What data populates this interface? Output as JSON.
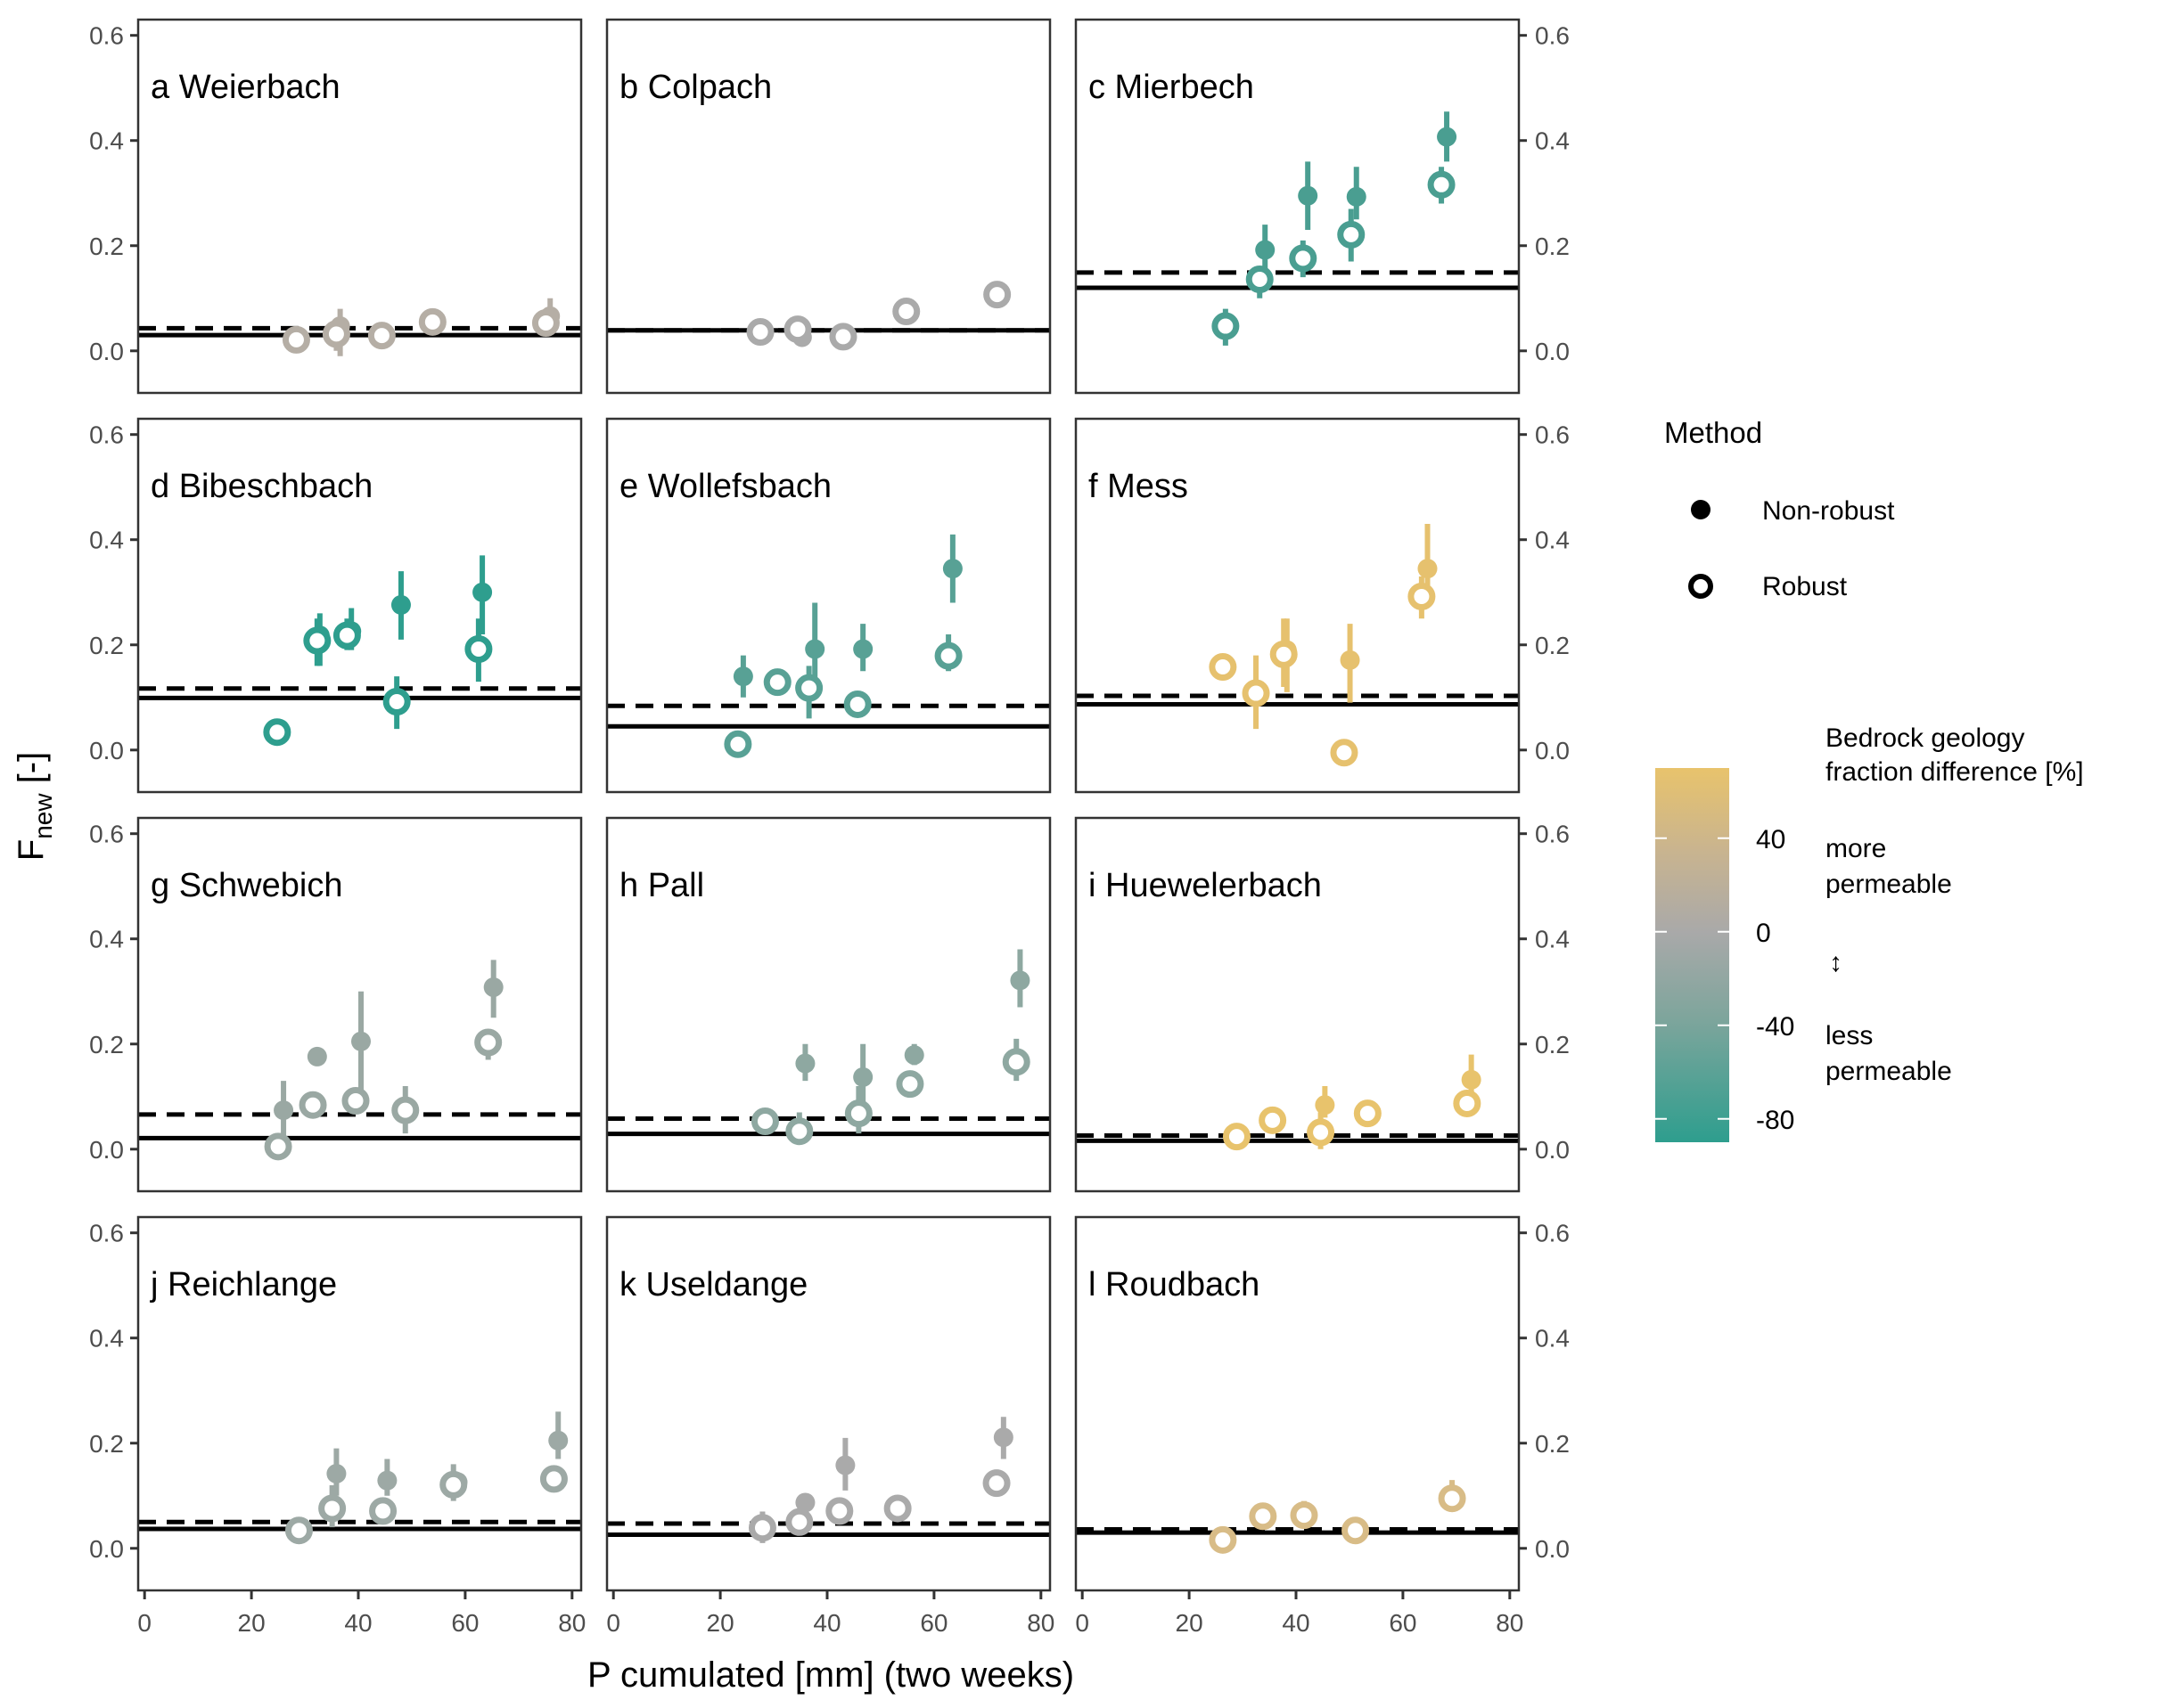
{
  "chart_data": {
    "type": "scatter",
    "title": "",
    "xlabel": "P cumulated [mm] (two weeks)",
    "ylabel": "F",
    "ylabel_subscript": "new",
    "ylabel_suffix": " [-]",
    "xlim": [
      -1.2,
      81.7
    ],
    "ylim": [
      -0.08,
      0.63
    ],
    "xticks": [
      0,
      20,
      40,
      60,
      80
    ],
    "xtick_labels": [
      "0",
      "20",
      "40",
      "60",
      "80"
    ],
    "yticks": [
      0.0,
      0.2,
      0.4,
      0.6
    ],
    "ytick_labels": [
      "0.0",
      "0.2",
      "0.4",
      "0.6"
    ],
    "grid": false,
    "legend": {
      "position": "right",
      "method_title": "Method",
      "items": [
        {
          "label": "Non-robust",
          "shape": "filled-circle"
        },
        {
          "label": "Robust",
          "shape": "open-circle"
        }
      ],
      "colorbar": {
        "title_lines": [
          "Bedrock geology",
          "fraction difference [%]"
        ],
        "range": [
          -90,
          70
        ],
        "ticks": [
          40,
          0,
          -40,
          -80
        ],
        "tick_labels": [
          "40",
          "0",
          "-40",
          "-80"
        ],
        "low_color": "#2E9E8E",
        "mid_color": "#A9A9A9",
        "high_color": "#E8C36C",
        "annotation_top": [
          "more",
          "permeable"
        ],
        "annotation_arrow": "↕",
        "annotation_bottom": [
          "less",
          "permeable"
        ]
      }
    },
    "reference_lines": {
      "solid": "solid reference line",
      "dashed": "dashed reference line"
    },
    "panels": [
      {
        "id": "a",
        "title": "a Weierbach",
        "color": "#B5AEA5",
        "solid": 0.03,
        "dashed": 0.043,
        "points": [
          {
            "method": "Robust",
            "x": 28.4,
            "y": 0.021
          },
          {
            "method": "Non-robust",
            "x": 36.6,
            "y": 0.047,
            "lo": -0.01,
            "hi": 0.08
          },
          {
            "method": "Robust",
            "x": 35.9,
            "y": 0.032,
            "lo": 0.0,
            "hi": 0.06
          },
          {
            "method": "Robust",
            "x": 44.4,
            "y": 0.029
          },
          {
            "method": "Robust",
            "x": 53.9,
            "y": 0.055
          },
          {
            "method": "Non-robust",
            "x": 75.9,
            "y": 0.066,
            "lo": 0.04,
            "hi": 0.1
          },
          {
            "method": "Robust",
            "x": 75.1,
            "y": 0.053
          }
        ]
      },
      {
        "id": "b",
        "title": "b Colpach",
        "color": "#AAAAAA",
        "solid": 0.039,
        "dashed": 0.039,
        "points": [
          {
            "method": "Robust",
            "x": 27.5,
            "y": 0.036
          },
          {
            "method": "Non-robust",
            "x": 35.3,
            "y": 0.026
          },
          {
            "method": "Robust",
            "x": 34.5,
            "y": 0.041
          },
          {
            "method": "Robust",
            "x": 43.0,
            "y": 0.027
          },
          {
            "method": "Robust",
            "x": 54.8,
            "y": 0.075
          },
          {
            "method": "Non-robust",
            "x": 72.4,
            "y": 0.107,
            "lo": 0.09,
            "hi": 0.125
          },
          {
            "method": "Robust",
            "x": 71.8,
            "y": 0.107
          }
        ]
      },
      {
        "id": "c",
        "title": "c Mierbech",
        "color": "#4A9E91",
        "solid": 0.12,
        "dashed": 0.149,
        "points": [
          {
            "method": "Robust",
            "x": 26.8,
            "y": 0.047,
            "lo": 0.01,
            "hi": 0.08
          },
          {
            "method": "Non-robust",
            "x": 34.2,
            "y": 0.192,
            "lo": 0.14,
            "hi": 0.24
          },
          {
            "method": "Robust",
            "x": 33.2,
            "y": 0.136,
            "lo": 0.1,
            "hi": 0.16
          },
          {
            "method": "Non-robust",
            "x": 42.2,
            "y": 0.295,
            "lo": 0.23,
            "hi": 0.36
          },
          {
            "method": "Robust",
            "x": 41.3,
            "y": 0.176,
            "lo": 0.14,
            "hi": 0.21
          },
          {
            "method": "Non-robust",
            "x": 51.3,
            "y": 0.293,
            "lo": 0.25,
            "hi": 0.35
          },
          {
            "method": "Robust",
            "x": 50.3,
            "y": 0.221,
            "lo": 0.17,
            "hi": 0.27
          },
          {
            "method": "Non-robust",
            "x": 68.2,
            "y": 0.407,
            "lo": 0.36,
            "hi": 0.455
          },
          {
            "method": "Robust",
            "x": 67.2,
            "y": 0.316,
            "lo": 0.28,
            "hi": 0.35
          }
        ]
      },
      {
        "id": "d",
        "title": "d Bibeschbach",
        "color": "#2E9E8E",
        "solid": 0.099,
        "dashed": 0.117,
        "points": [
          {
            "method": "Non-robust",
            "x": 25.3,
            "y": 0.04
          },
          {
            "method": "Robust",
            "x": 24.8,
            "y": 0.034
          },
          {
            "method": "Non-robust",
            "x": 32.8,
            "y": 0.218,
            "lo": 0.16,
            "hi": 0.26
          },
          {
            "method": "Robust",
            "x": 32.3,
            "y": 0.208,
            "lo": 0.16,
            "hi": 0.25
          },
          {
            "method": "Non-robust",
            "x": 38.7,
            "y": 0.226,
            "lo": 0.19,
            "hi": 0.27
          },
          {
            "method": "Robust",
            "x": 37.9,
            "y": 0.218,
            "lo": 0.19,
            "hi": 0.25
          },
          {
            "method": "Non-robust",
            "x": 48.0,
            "y": 0.276,
            "lo": 0.21,
            "hi": 0.34
          },
          {
            "method": "Robust",
            "x": 47.2,
            "y": 0.092,
            "lo": 0.04,
            "hi": 0.14
          },
          {
            "method": "Non-robust",
            "x": 63.2,
            "y": 0.3,
            "lo": 0.22,
            "hi": 0.37
          },
          {
            "method": "Robust",
            "x": 62.5,
            "y": 0.192,
            "lo": 0.13,
            "hi": 0.25
          }
        ]
      },
      {
        "id": "e",
        "title": "e Wollefsbach",
        "color": "#58A195",
        "solid": 0.045,
        "dashed": 0.084,
        "points": [
          {
            "method": "Robust",
            "x": 23.3,
            "y": 0.011
          },
          {
            "method": "Non-robust",
            "x": 24.3,
            "y": 0.14,
            "lo": 0.1,
            "hi": 0.18
          },
          {
            "method": "Robust",
            "x": 30.7,
            "y": 0.129
          },
          {
            "method": "Non-robust",
            "x": 37.7,
            "y": 0.192,
            "lo": 0.12,
            "hi": 0.28
          },
          {
            "method": "Robust",
            "x": 36.6,
            "y": 0.118,
            "lo": 0.06,
            "hi": 0.16
          },
          {
            "method": "Non-robust",
            "x": 46.7,
            "y": 0.192,
            "lo": 0.15,
            "hi": 0.24
          },
          {
            "method": "Robust",
            "x": 45.7,
            "y": 0.087
          },
          {
            "method": "Non-robust",
            "x": 63.5,
            "y": 0.345,
            "lo": 0.28,
            "hi": 0.41
          },
          {
            "method": "Robust",
            "x": 62.7,
            "y": 0.179,
            "lo": 0.15,
            "hi": 0.22
          }
        ]
      },
      {
        "id": "f",
        "title": "f Mess",
        "color": "#E6C16E",
        "solid": 0.087,
        "dashed": 0.103,
        "points": [
          {
            "method": "Robust",
            "x": 26.3,
            "y": 0.158,
            "lo": 0.14,
            "hi": 0.17
          },
          {
            "method": "Robust",
            "x": 32.5,
            "y": 0.108,
            "lo": 0.04,
            "hi": 0.18
          },
          {
            "method": "Non-robust",
            "x": 38.3,
            "y": 0.19,
            "lo": 0.11,
            "hi": 0.25
          },
          {
            "method": "Robust",
            "x": 37.7,
            "y": 0.182,
            "lo": 0.12,
            "hi": 0.25
          },
          {
            "method": "Non-robust",
            "x": 50.1,
            "y": 0.171,
            "lo": 0.09,
            "hi": 0.24
          },
          {
            "method": "Robust",
            "x": 49.0,
            "y": -0.005
          },
          {
            "method": "Non-robust",
            "x": 64.6,
            "y": 0.345,
            "lo": 0.3,
            "hi": 0.43
          },
          {
            "method": "Robust",
            "x": 63.5,
            "y": 0.292,
            "lo": 0.25,
            "hi": 0.33
          }
        ]
      },
      {
        "id": "g",
        "title": "g Schwebich",
        "color": "#9AA8A3",
        "solid": 0.021,
        "dashed": 0.066,
        "points": [
          {
            "method": "Non-robust",
            "x": 26.0,
            "y": 0.074,
            "lo": 0.02,
            "hi": 0.13
          },
          {
            "method": "Robust",
            "x": 25.0,
            "y": 0.005
          },
          {
            "method": "Non-robust",
            "x": 32.3,
            "y": 0.176
          },
          {
            "method": "Robust",
            "x": 31.5,
            "y": 0.084
          },
          {
            "method": "Non-robust",
            "x": 40.5,
            "y": 0.205,
            "lo": 0.08,
            "hi": 0.3
          },
          {
            "method": "Robust",
            "x": 39.5,
            "y": 0.092
          },
          {
            "method": "Robust",
            "x": 48.8,
            "y": 0.074,
            "lo": 0.03,
            "hi": 0.12
          },
          {
            "method": "Non-robust",
            "x": 65.3,
            "y": 0.308,
            "lo": 0.25,
            "hi": 0.36
          },
          {
            "method": "Robust",
            "x": 64.3,
            "y": 0.203,
            "lo": 0.17,
            "hi": 0.22
          }
        ]
      },
      {
        "id": "h",
        "title": "h Pall",
        "color": "#8EA8A1",
        "solid": 0.029,
        "dashed": 0.058,
        "points": [
          {
            "method": "Robust",
            "x": 28.4,
            "y": 0.053,
            "lo": 0.04,
            "hi": 0.06
          },
          {
            "method": "Non-robust",
            "x": 35.9,
            "y": 0.163,
            "lo": 0.13,
            "hi": 0.2
          },
          {
            "method": "Robust",
            "x": 34.8,
            "y": 0.034,
            "lo": 0.01,
            "hi": 0.07
          },
          {
            "method": "Non-robust",
            "x": 46.7,
            "y": 0.137,
            "lo": 0.08,
            "hi": 0.2
          },
          {
            "method": "Robust",
            "x": 45.9,
            "y": 0.068,
            "lo": 0.03,
            "hi": 0.12
          },
          {
            "method": "Non-robust",
            "x": 56.3,
            "y": 0.179,
            "lo": 0.16,
            "hi": 0.2
          },
          {
            "method": "Robust",
            "x": 55.5,
            "y": 0.124
          },
          {
            "method": "Non-robust",
            "x": 76.1,
            "y": 0.321,
            "lo": 0.27,
            "hi": 0.38
          },
          {
            "method": "Robust",
            "x": 75.4,
            "y": 0.166,
            "lo": 0.13,
            "hi": 0.21
          }
        ]
      },
      {
        "id": "i",
        "title": "i Huewelerbach",
        "color": "#E8C36C",
        "solid": 0.016,
        "dashed": 0.026,
        "points": [
          {
            "method": "Robust",
            "x": 28.9,
            "y": 0.024
          },
          {
            "method": "Robust",
            "x": 35.6,
            "y": 0.055
          },
          {
            "method": "Non-robust",
            "x": 45.4,
            "y": 0.084,
            "lo": 0.06,
            "hi": 0.12
          },
          {
            "method": "Robust",
            "x": 44.6,
            "y": 0.032,
            "lo": 0.0,
            "hi": 0.07
          },
          {
            "method": "Robust",
            "x": 53.4,
            "y": 0.068
          },
          {
            "method": "Non-robust",
            "x": 72.8,
            "y": 0.132,
            "lo": 0.1,
            "hi": 0.18
          },
          {
            "method": "Robust",
            "x": 72.0,
            "y": 0.087
          }
        ]
      },
      {
        "id": "j",
        "title": "j Reichlange",
        "color": "#9DA9A5",
        "solid": 0.037,
        "dashed": 0.05,
        "points": [
          {
            "method": "Robust",
            "x": 28.9,
            "y": 0.034
          },
          {
            "method": "Non-robust",
            "x": 35.9,
            "y": 0.142,
            "lo": 0.1,
            "hi": 0.19
          },
          {
            "method": "Robust",
            "x": 35.1,
            "y": 0.076,
            "lo": 0.04,
            "hi": 0.12
          },
          {
            "method": "Non-robust",
            "x": 45.4,
            "y": 0.129,
            "lo": 0.1,
            "hi": 0.17
          },
          {
            "method": "Robust",
            "x": 44.6,
            "y": 0.071
          },
          {
            "method": "Non-robust",
            "x": 58.6,
            "y": 0.126
          },
          {
            "method": "Robust",
            "x": 57.8,
            "y": 0.121,
            "lo": 0.09,
            "hi": 0.16
          },
          {
            "method": "Non-robust",
            "x": 77.4,
            "y": 0.205,
            "lo": 0.17,
            "hi": 0.26
          },
          {
            "method": "Robust",
            "x": 76.6,
            "y": 0.132
          }
        ]
      },
      {
        "id": "k",
        "title": "k Useldange",
        "color": "#AAAAAA",
        "solid": 0.026,
        "dashed": 0.047,
        "points": [
          {
            "method": "Robust",
            "x": 27.9,
            "y": 0.039,
            "lo": 0.01,
            "hi": 0.07
          },
          {
            "method": "Non-robust",
            "x": 35.9,
            "y": 0.087
          },
          {
            "method": "Robust",
            "x": 34.8,
            "y": 0.05
          },
          {
            "method": "Non-robust",
            "x": 43.4,
            "y": 0.158,
            "lo": 0.11,
            "hi": 0.21
          },
          {
            "method": "Robust",
            "x": 42.3,
            "y": 0.071
          },
          {
            "method": "Robust",
            "x": 53.2,
            "y": 0.076
          },
          {
            "method": "Non-robust",
            "x": 73.0,
            "y": 0.211,
            "lo": 0.17,
            "hi": 0.25
          },
          {
            "method": "Robust",
            "x": 71.7,
            "y": 0.124
          }
        ]
      },
      {
        "id": "l",
        "title": "l Roudbach",
        "color": "#D8BC87",
        "solid": 0.03,
        "dashed": 0.036,
        "points": [
          {
            "method": "Robust",
            "x": 26.3,
            "y": 0.016,
            "lo": 0.0,
            "hi": 0.04
          },
          {
            "method": "Robust",
            "x": 33.8,
            "y": 0.061
          },
          {
            "method": "Robust",
            "x": 41.5,
            "y": 0.063,
            "lo": 0.04,
            "hi": 0.09
          },
          {
            "method": "Robust",
            "x": 51.1,
            "y": 0.034
          },
          {
            "method": "Robust",
            "x": 69.2,
            "y": 0.095,
            "lo": 0.07,
            "hi": 0.13
          }
        ]
      }
    ]
  }
}
